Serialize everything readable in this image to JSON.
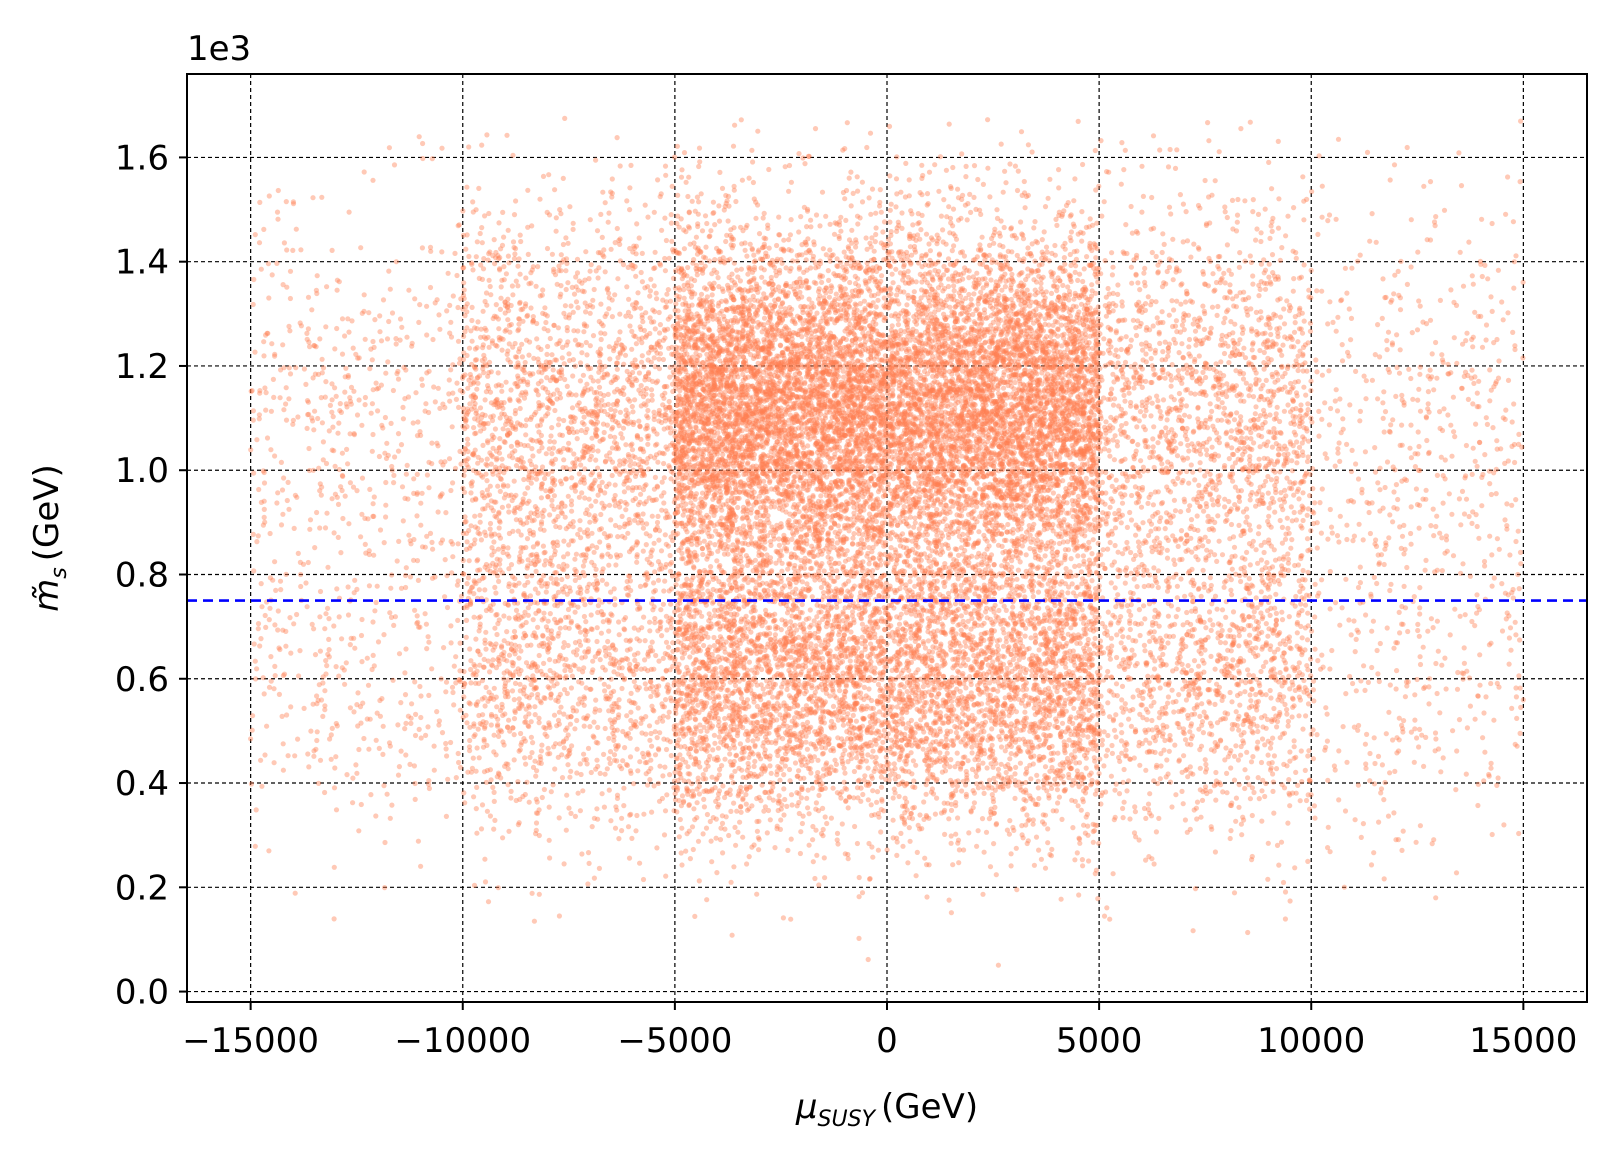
{
  "chart_data": {
    "type": "scatter",
    "title": "",
    "xlabel": {
      "symbol": "μ",
      "subscript": "SUSY",
      "unit": "(GeV)"
    },
    "ylabel": {
      "symbol": "m̃",
      "subscript": "s",
      "unit": "(GeV)"
    },
    "y_offset_label": "1e3",
    "xlim": [
      -16500,
      16500
    ],
    "ylim": [
      -0.02,
      1.76
    ],
    "y_scale_factor": 1000,
    "xticks": [
      -15000,
      -10000,
      -5000,
      0,
      5000,
      10000,
      15000
    ],
    "xtick_labels": [
      "−15000",
      "−10000",
      "−5000",
      "0",
      "5000",
      "10000",
      "15000"
    ],
    "yticks": [
      0.0,
      0.2,
      0.4,
      0.6,
      0.8,
      1.0,
      1.2,
      1.4,
      1.6
    ],
    "ytick_labels": [
      "0.0",
      "0.2",
      "0.4",
      "0.6",
      "0.8",
      "1.0",
      "1.2",
      "1.4",
      "1.6"
    ],
    "grid": true,
    "legend": "none",
    "series": [
      {
        "marker_color": "#ff7f50",
        "x_range": [
          -15000,
          15000
        ],
        "y_range": [
          0.05,
          1.68
        ],
        "clusters": [
          {
            "x_center": 0,
            "x_halfwidth": 5000,
            "y_center": 1.12,
            "y_spread": 0.16,
            "weight": 0.33
          },
          {
            "x_center": 0,
            "x_halfwidth": 5000,
            "y_center": 0.6,
            "y_spread": 0.14,
            "weight": 0.14
          },
          {
            "x_center": 0,
            "x_halfwidth": 10000,
            "y_center": 1.1,
            "y_spread": 0.2,
            "weight": 0.22
          },
          {
            "x_center": 0,
            "x_halfwidth": 10000,
            "y_center": 0.58,
            "y_spread": 0.15,
            "weight": 0.12
          },
          {
            "x_center": 0,
            "x_halfwidth": 15000,
            "y_center": 1.1,
            "y_spread": 0.22,
            "weight": 0.12
          },
          {
            "x_center": 0,
            "x_halfwidth": 15000,
            "y_center": 0.57,
            "y_spread": 0.16,
            "weight": 0.07
          }
        ]
      }
    ],
    "reference_lines": [
      {
        "orientation": "horizontal",
        "y": 0.75,
        "color": "#0000ff",
        "style": "dashed"
      }
    ]
  }
}
